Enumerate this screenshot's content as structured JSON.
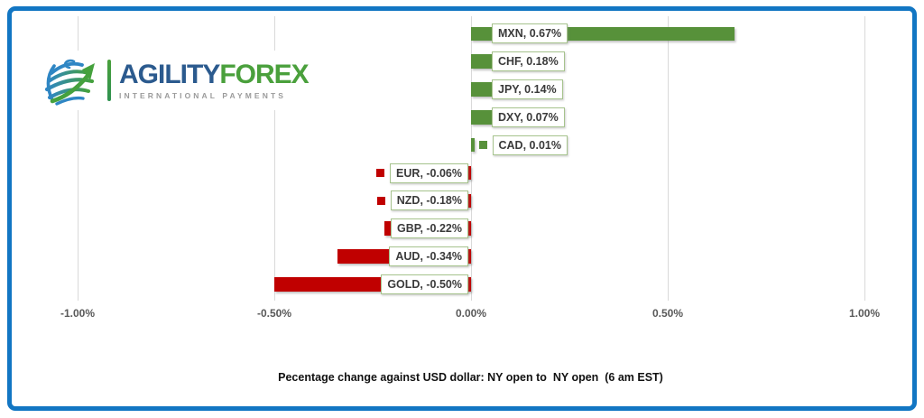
{
  "logo": {
    "brand_primary": "AGILITY",
    "brand_secondary": "FOREX",
    "tagline": "INTERNATIONAL PAYMENTS"
  },
  "chart_data": {
    "type": "bar",
    "orientation": "horizontal",
    "title": "Pecentage change against USD dollar: NY open to  NY open  (6 am EST)",
    "categories": [
      "MXN",
      "CHF",
      "JPY",
      "DXY",
      "CAD",
      "EUR",
      "NZD",
      "GBP",
      "AUD",
      "GOLD"
    ],
    "values": [
      0.67,
      0.18,
      0.14,
      0.07,
      0.01,
      -0.06,
      -0.18,
      -0.22,
      -0.34,
      -0.5
    ],
    "labels": [
      "MXN, 0.67%",
      "CHF, 0.18%",
      "JPY, 0.14%",
      "DXY, 0.07%",
      "CAD, 0.01%",
      "EUR, -0.06%",
      "NZD, -0.18%",
      "GBP, -0.22%",
      "AUD, -0.34%",
      "GOLD, -0.50%"
    ],
    "x_ticks": [
      "-1.00%",
      "-0.50%",
      "0.00%",
      "0.50%",
      "1.00%"
    ],
    "x_tick_values": [
      -1,
      -0.5,
      0,
      0.5,
      1
    ],
    "xlim": [
      -1,
      1
    ],
    "grid": "vertical",
    "legend": "none",
    "legend_key_rows": [
      "CAD",
      "EUR",
      "NZD"
    ],
    "colors": {
      "positive": "#57913a",
      "negative": "#c00000",
      "label_border": "#a6c38d",
      "gridline": "#d9d9d9",
      "tick_text": "#595959",
      "frame_border": "#1276c3"
    }
  }
}
